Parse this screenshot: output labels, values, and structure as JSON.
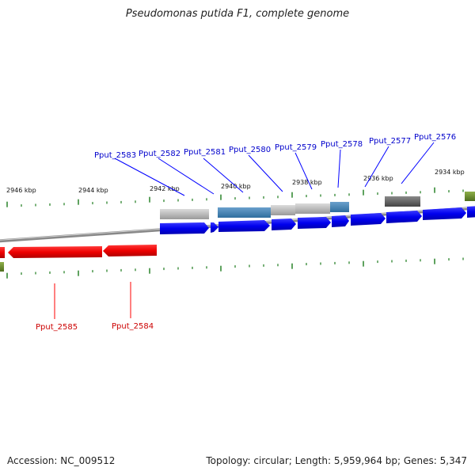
{
  "title": "Pseudomonas putida F1, complete genome",
  "footer": {
    "accession": "Accession: NC_009512",
    "summary": "Topology: circular; Length: 5,959,964 bp; Genes: 5,347"
  },
  "colors": {
    "forward_gene": "#0000ff",
    "reverse_gene": "#ff0000",
    "forward_label": "#0000cc",
    "reverse_label": "#cc0000",
    "tick": "#1a7a1a",
    "backbone": "#888888"
  },
  "scale": {
    "labels": [
      "2946 kbp",
      "2944 kbp",
      "2942 kbp",
      "2940 kbp",
      "2938 kbp",
      "2936 kbp",
      "2934 kbp"
    ]
  },
  "forward_genes": [
    {
      "label": "Pput_2583"
    },
    {
      "label": "Pput_2582"
    },
    {
      "label": "Pput_2581"
    },
    {
      "label": "Pput_2580"
    },
    {
      "label": "Pput_2579"
    },
    {
      "label": "Pput_2578"
    },
    {
      "label": "Pput_2577"
    },
    {
      "label": "Pput_2576"
    }
  ],
  "reverse_genes": [
    {
      "label": "Pput_2585"
    },
    {
      "label": "Pput_2584"
    }
  ]
}
